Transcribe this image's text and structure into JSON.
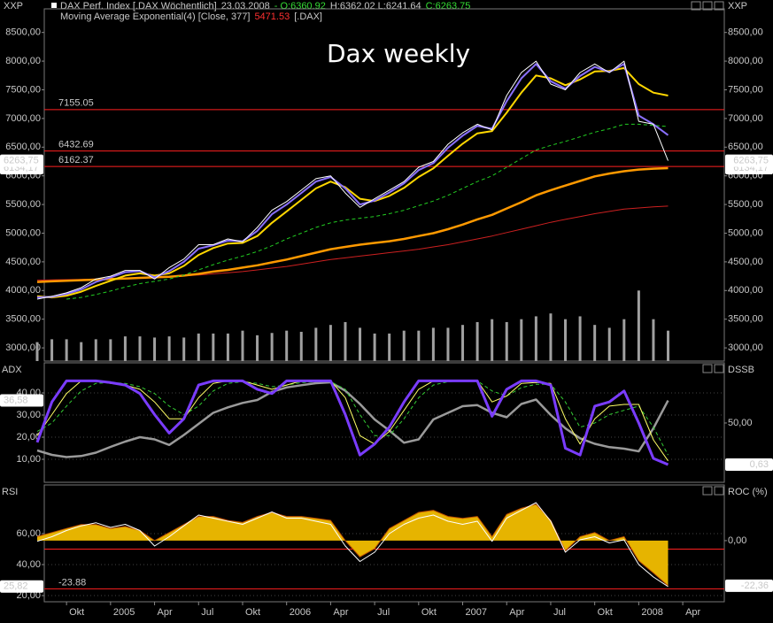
{
  "chart_data": [
    {
      "type": "line",
      "title": "Dax weekly",
      "axis_label": "XXP",
      "header": [
        [
          {
            "text": "DAX Perf. Index [.DAX  Wöchentlich]",
            "color": "#c8c8c8"
          },
          {
            "text": "23.03.2008",
            "color": "#c8c8c8"
          },
          {
            "text": "- O:6360.92",
            "color": "#33dd33"
          },
          {
            "text": "H:6362.02 L:6241.64",
            "color": "#c8c8c8"
          },
          {
            "text": "C:6263.75",
            "color": "#33dd33"
          }
        ],
        [
          {
            "text": "Moving Average Exponential(4) [Close, 377]",
            "color": "#c8c8c8"
          },
          {
            "text": "5471.53",
            "color": "#ff3030"
          },
          {
            "text": "[.DAX]",
            "color": "#c8c8c8"
          }
        ]
      ],
      "ylim": [
        2770,
        8850
      ],
      "mirror_yticks": true,
      "yticks": [
        {
          "value": 8500,
          "label": "8500,00"
        },
        {
          "value": 8000,
          "label": "8000,00"
        },
        {
          "value": 7500,
          "label": "7500,00"
        },
        {
          "value": 7000,
          "label": "7000,00"
        },
        {
          "value": 6500,
          "label": "6500,00"
        },
        {
          "value": 6000,
          "label": "6000,00"
        },
        {
          "value": 5500,
          "label": "5500,00"
        },
        {
          "value": 5000,
          "label": "5000,00"
        },
        {
          "value": 4500,
          "label": "4500,00"
        },
        {
          "value": 4000,
          "label": "4000,00"
        },
        {
          "value": 3500,
          "label": "3500,00"
        },
        {
          "value": 3000,
          "label": "3000,00"
        }
      ],
      "hlines": [
        {
          "value": 7155.05,
          "label": "7155.05",
          "color": "#ff2020"
        },
        {
          "value": 6432.69,
          "label": "6432.69",
          "color": "#ff2020"
        },
        {
          "value": 6162.37,
          "label": "6162.37",
          "color": "#ff2020"
        }
      ],
      "tags": [
        {
          "value": 6134.17,
          "label": "6134,17"
        },
        {
          "value": 6263.75,
          "label": "6263,75"
        }
      ],
      "series": [
        {
          "type": "bar",
          "color": "#a0a0a0",
          "values": [
            3100,
            3150,
            3150,
            3100,
            3150,
            3150,
            3200,
            3200,
            3180,
            3200,
            3180,
            3250,
            3250,
            3250,
            3300,
            3220,
            3260,
            3300,
            3280,
            3350,
            3400,
            3450,
            3350,
            3250,
            3250,
            3300,
            3300,
            3350,
            3350,
            3400,
            3450,
            3500,
            3450,
            3500,
            3550,
            3600,
            3500,
            3550,
            3400,
            3350,
            3500,
            4000,
            3500,
            3300,
            null
          ]
        },
        {
          "type": "line",
          "color": "#cc2020",
          "width": 1,
          "values": [
            4180,
            4185,
            4190,
            4195,
            4200,
            4205,
            4215,
            4225,
            4235,
            4245,
            4255,
            4270,
            4290,
            4310,
            4330,
            4360,
            4390,
            4420,
            4460,
            4500,
            4540,
            4570,
            4600,
            4630,
            4660,
            4690,
            4720,
            4760,
            4800,
            4850,
            4900,
            4950,
            5010,
            5070,
            5130,
            5190,
            5240,
            5290,
            5340,
            5380,
            5420,
            5440,
            5460,
            5471.53,
            null
          ]
        },
        {
          "type": "line",
          "color": "#ff9900",
          "width": 2.5,
          "values": [
            4150,
            4160,
            4170,
            4180,
            4190,
            4200,
            4210,
            4220,
            4230,
            4240,
            4260,
            4290,
            4330,
            4360,
            4400,
            4440,
            4490,
            4540,
            4600,
            4660,
            4720,
            4760,
            4800,
            4830,
            4860,
            4900,
            4950,
            5000,
            5070,
            5150,
            5240,
            5320,
            5430,
            5540,
            5660,
            5750,
            5830,
            5910,
            5990,
            6040,
            6080,
            6110,
            6125,
            6134.17,
            null
          ]
        },
        {
          "type": "line",
          "color": "#22cc22",
          "width": 1,
          "dash": true,
          "values": [
            null,
            null,
            3850,
            3880,
            3930,
            3990,
            4060,
            4120,
            4160,
            4200,
            4270,
            4360,
            4450,
            4530,
            4600,
            4680,
            4780,
            4900,
            5000,
            5100,
            5180,
            5230,
            5260,
            5290,
            5340,
            5400,
            5480,
            5560,
            5660,
            5780,
            5900,
            6000,
            6150,
            6300,
            6450,
            6530,
            6600,
            6680,
            6760,
            6820,
            6900,
            6900,
            6880,
            6860,
            null
          ]
        },
        {
          "type": "line",
          "color": "#ffd700",
          "width": 2,
          "values": [
            3900,
            3880,
            3910,
            3980,
            4080,
            4170,
            4260,
            4300,
            4260,
            4300,
            4430,
            4620,
            4740,
            4820,
            4830,
            4950,
            5180,
            5380,
            5580,
            5780,
            5900,
            5800,
            5600,
            5560,
            5650,
            5790,
            5980,
            6130,
            6350,
            6560,
            6740,
            6780,
            7100,
            7450,
            7750,
            7700,
            7580,
            7680,
            7820,
            7830,
            7880,
            7600,
            7450,
            7400,
            null
          ]
        },
        {
          "type": "line",
          "color": "#8a70ff",
          "width": 2,
          "values": [
            3880,
            3890,
            3940,
            4020,
            4150,
            4230,
            4320,
            4340,
            4230,
            4340,
            4500,
            4730,
            4790,
            4870,
            4860,
            5040,
            5330,
            5500,
            5700,
            5900,
            5980,
            5780,
            5500,
            5570,
            5710,
            5870,
            6100,
            6220,
            6490,
            6700,
            6870,
            6820,
            7300,
            7700,
            7950,
            7650,
            7520,
            7740,
            7900,
            7810,
            7950,
            7050,
            6900,
            6710,
            null
          ]
        },
        {
          "type": "line",
          "color": "#ffffff",
          "width": 1,
          "values": [
            3850,
            3900,
            3960,
            4050,
            4200,
            4250,
            4350,
            4350,
            4200,
            4400,
            4550,
            4800,
            4800,
            4900,
            4850,
            5100,
            5400,
            5550,
            5750,
            5950,
            6000,
            5700,
            5450,
            5600,
            5750,
            5900,
            6150,
            6250,
            6550,
            6750,
            6900,
            6800,
            7400,
            7800,
            8000,
            7600,
            7500,
            7800,
            7950,
            7800,
            8000,
            6950,
            6900,
            6263.75,
            null
          ]
        }
      ]
    },
    {
      "type": "line",
      "label_left": "ADX",
      "label_right": "DSSB",
      "grid": true,
      "ylim": [
        -0.4,
        53.6
      ],
      "yticks": [
        {
          "value": 40,
          "label": "40,00"
        },
        {
          "value": 30,
          "label": "30,00"
        },
        {
          "value": 20,
          "label": "20,00"
        },
        {
          "value": 10,
          "label": "10,00"
        }
      ],
      "y2lim": [
        -20.4,
        121.4
      ],
      "y2ticks": [
        {
          "value": 50,
          "label": "50,00"
        }
      ],
      "tags": [
        {
          "value": 36.58,
          "label": "36,58",
          "axis": "y"
        },
        {
          "value": 0.63,
          "label": "0,63",
          "axis": "y2"
        }
      ],
      "series": [
        {
          "type": "line",
          "color": "#9a9a9a",
          "width": 2.5,
          "values": [
            14,
            12,
            11,
            11.5,
            13,
            15.6,
            18,
            20,
            19,
            16.5,
            21,
            26,
            31,
            33.5,
            35.5,
            36.8,
            40.5,
            42.5,
            43.5,
            44.4,
            44.8,
            41,
            35,
            28,
            23,
            17.5,
            19,
            28,
            31,
            34,
            34.5,
            31,
            29,
            35,
            37,
            30,
            24,
            19.5,
            17,
            15.5,
            14.8,
            13.6,
            24,
            36.58,
            null
          ]
        },
        {
          "type": "line",
          "axis": "y2",
          "color": "#33cc33",
          "width": 1,
          "dash": true,
          "values": [
            40,
            50,
            70,
            88,
            97,
            98,
            97,
            93,
            85,
            70,
            60,
            70,
            88,
            97,
            99,
            97,
            93,
            95,
            98,
            99,
            99,
            90,
            60,
            35,
            35,
            55,
            80,
            95,
            99,
            100,
            100,
            88,
            82,
            92,
            96,
            96,
            75,
            45,
            50,
            60,
            65,
            70,
            45,
            12,
            null
          ]
        },
        {
          "type": "line",
          "axis": "y2",
          "color": "#ffff66",
          "width": 1,
          "values": [
            35,
            60,
            85,
            100,
            100,
            97,
            95,
            90,
            75,
            55,
            55,
            80,
            97,
            100,
            100,
            95,
            90,
            95,
            100,
            100,
            100,
            80,
            35,
            25,
            40,
            65,
            90,
            100,
            100,
            100,
            100,
            75,
            82,
            97,
            98,
            97,
            55,
            25,
            55,
            70,
            72,
            72,
            30,
            5,
            null
          ]
        },
        {
          "type": "line",
          "axis": "y2",
          "color": "#7a3cff",
          "width": 3,
          "values": [
            27,
            75,
            100,
            100,
            100,
            98,
            95,
            85,
            60,
            38,
            55,
            95,
            100,
            100,
            100,
            90,
            85,
            100,
            100,
            100,
            100,
            60,
            12,
            25,
            45,
            75,
            100,
            100,
            100,
            100,
            100,
            58,
            90,
            100,
            100,
            95,
            20,
            12,
            70,
            75,
            88,
            50,
            8,
            0.63,
            null
          ]
        }
      ]
    },
    {
      "type": "line",
      "label_left": "RSI",
      "label_right": "ROC (%)",
      "grid": true,
      "ylim": [
        16,
        91.4
      ],
      "yticks": [
        {
          "value": 60,
          "label": "60,00"
        },
        {
          "value": 40,
          "label": "40,00"
        },
        {
          "value": 20,
          "label": "20,00"
        }
      ],
      "y2lim": [
        -30.3,
        27.6
      ],
      "y2ticks": [
        {
          "value": 0,
          "label": "0,00"
        }
      ],
      "hlines": [
        {
          "value": 50,
          "color": "#ff2020"
        },
        {
          "value": -23.88,
          "label": "-23.88",
          "axis": "y2",
          "color": "#ff2020"
        }
      ],
      "tags": [
        {
          "value": 25.82,
          "label": "25,82",
          "axis": "y"
        },
        {
          "value": -22.36,
          "label": "-22,36",
          "axis": "y2"
        }
      ],
      "categories": [
        null,
        null,
        "Okt",
        null,
        null,
        "2005",
        null,
        null,
        "Apr",
        null,
        null,
        "Jul",
        null,
        null,
        "Okt",
        null,
        null,
        "2006",
        null,
        null,
        "Apr",
        null,
        null,
        "Jul",
        null,
        null,
        "Okt",
        null,
        null,
        "2007",
        null,
        null,
        "Apr",
        null,
        null,
        "Jul",
        null,
        null,
        "Okt",
        null,
        null,
        "2008",
        null,
        null,
        "Apr"
      ],
      "series": [
        {
          "type": "area",
          "axis": "y2",
          "color": "#e6b400",
          "values": [
            2,
            4,
            6,
            8,
            8,
            6,
            7,
            5,
            0,
            4,
            8,
            12,
            12,
            10,
            9,
            12,
            14,
            12,
            12,
            11,
            10,
            0,
            -8,
            -4,
            6,
            10,
            14,
            15,
            12,
            11,
            12,
            2,
            13,
            16,
            18,
            10,
            -5,
            2,
            4,
            0,
            2,
            -10,
            -16,
            -22.36,
            null
          ]
        },
        {
          "type": "line",
          "color": "#ffffff",
          "width": 1,
          "values": [
            55,
            58,
            62,
            65,
            67,
            64,
            66,
            62,
            52,
            58,
            65,
            72,
            70,
            68,
            66,
            70,
            74,
            70,
            70,
            68,
            66,
            52,
            42,
            48,
            60,
            66,
            70,
            72,
            68,
            66,
            68,
            55,
            70,
            75,
            80,
            68,
            48,
            56,
            58,
            54,
            56,
            40,
            32,
            25.82,
            null
          ]
        }
      ]
    }
  ]
}
